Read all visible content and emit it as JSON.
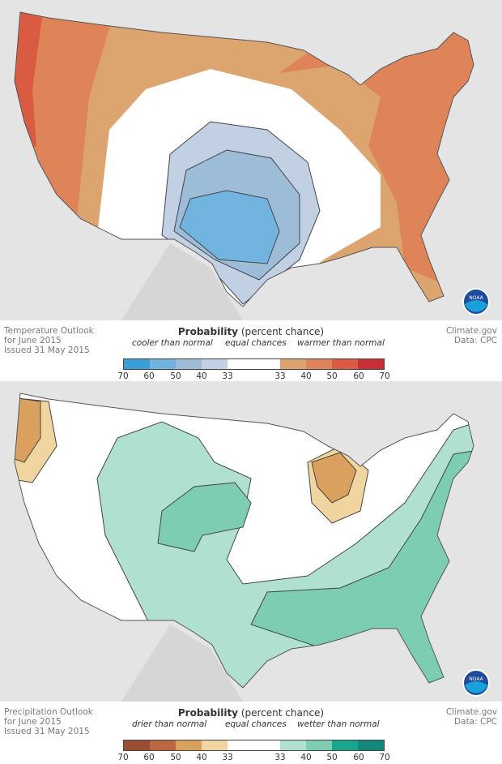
{
  "panels": [
    {
      "info": [
        "Temperature Outlook",
        "for June 2015",
        "Issued 31 May 2015"
      ],
      "credit": [
        "Climate.gov",
        "Data: CPC"
      ],
      "legend": {
        "title": "Probability",
        "title_suffix": " (percent chance)",
        "left": "cooler than normal",
        "middle": "equal chances",
        "right": "warmer than normal",
        "ticks": [
          "70",
          "60",
          "50",
          "40",
          "33",
          "33",
          "40",
          "50",
          "60",
          "70"
        ],
        "colors": [
          "#3a9fd9",
          "#72b4e0",
          "#9dbcd8",
          "#c1d0e3",
          "#ffffff",
          "#ffffff",
          "#dca46e",
          "#df8458",
          "#d95b41",
          "#c82f35"
        ]
      }
    },
    {
      "info": [
        "Precipitation Outlook",
        "for June 2015",
        "Issued 31 May 2015"
      ],
      "credit": [
        "Climate.gov",
        "Data: CPC"
      ],
      "legend": {
        "title": "Probability",
        "title_suffix": " (percent chance)",
        "left": "drier than normal",
        "middle": "equal chances",
        "right": "wetter than normal",
        "ticks": [
          "70",
          "60",
          "50",
          "40",
          "33",
          "33",
          "40",
          "50",
          "60",
          "70"
        ],
        "colors": [
          "#9c4d34",
          "#bb6840",
          "#d9a15d",
          "#f1d5a0",
          "#ffffff",
          "#ffffff",
          "#b0e0d0",
          "#7ccdb2",
          "#17a78f",
          "#11887a"
        ]
      }
    }
  ],
  "logo": "NOAA"
}
